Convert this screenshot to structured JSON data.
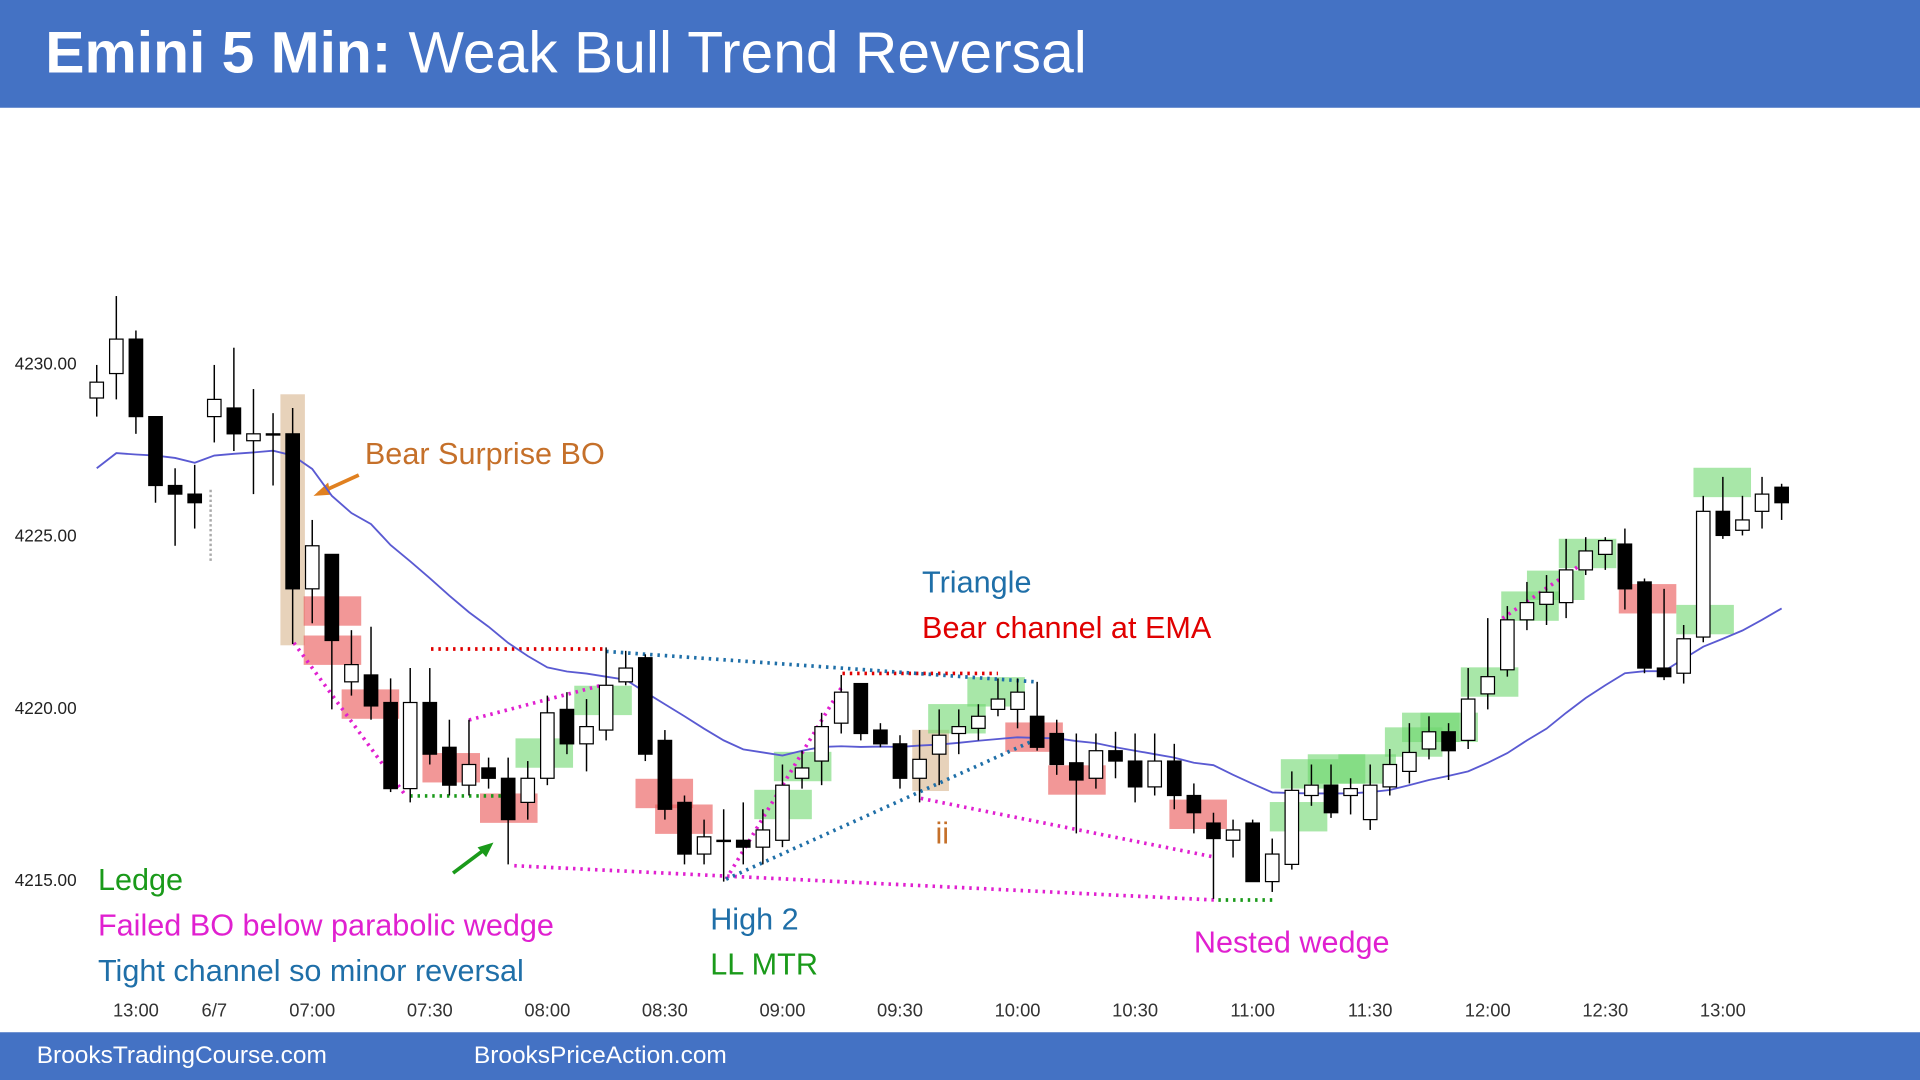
{
  "chart_data": {
    "type": "candlestick",
    "title": "Emini 5 Min:",
    "subtitle": "Weak Bull Trend Reversal",
    "categories": [
      null,
      null,
      "13:00",
      null,
      null,
      null,
      "6/7",
      null,
      null,
      null,
      null,
      "07:00",
      null,
      null,
      null,
      null,
      null,
      "07:30",
      null,
      null,
      null,
      null,
      null,
      "08:00",
      null,
      null,
      null,
      null,
      null,
      "08:30",
      null,
      null,
      null,
      null,
      null,
      "09:00",
      null,
      null,
      null,
      null,
      null,
      "09:30",
      null,
      null,
      null,
      null,
      null,
      "10:00",
      null,
      null,
      null,
      null,
      null,
      "10:30",
      null,
      null,
      null,
      null,
      null,
      "11:00",
      null,
      null,
      null,
      null,
      null,
      "11:30",
      null,
      null,
      null,
      null,
      null,
      "12:00",
      null,
      null,
      null,
      null,
      null,
      "12:30",
      null,
      null,
      null,
      null,
      null,
      "13:00",
      null,
      null,
      null
    ],
    "open": [
      4229.04,
      4229.75,
      4230.75,
      4228.5,
      4226.5,
      4226.25,
      4228.5,
      4228.75,
      4227.8,
      4228,
      4228,
      4223.5,
      4224.5,
      4220.8,
      4221,
      4220.2,
      4217.7,
      4220.2,
      4218.9,
      4217.8,
      4218.3,
      4218,
      4217.3,
      4218,
      4220,
      4219,
      4219.4,
      4220.8,
      4221.5,
      4219.1,
      4217.3,
      4215.8,
      4216.2,
      4216.2,
      4216,
      4216.2,
      4218,
      4218.5,
      4219.6,
      4220.75,
      4219.4,
      4219,
      4218,
      4218.7,
      4219.3,
      4219.45,
      4220,
      4220,
      4219.8,
      4219.3,
      4218.45,
      4218,
      4218.8,
      4218.5,
      4217.75,
      4218.5,
      4217.5,
      4216.7,
      4216.2,
      4216.7,
      4215,
      4215.5,
      4217.5,
      4217.8,
      4217.5,
      4216.8,
      4217.75,
      4218.2,
      4218.85,
      4219.35,
      4219.1,
      4220.45,
      4221.15,
      4222.6,
      4223.05,
      4223.1,
      4224.05,
      4224.5,
      4224.8,
      4223.7,
      4221.2,
      4221.05,
      4222.1,
      4225.75,
      4225.2,
      4225.75,
      4226.45
    ],
    "high": [
      4230,
      4232,
      4231,
      4228.5,
      4227,
      4227.1,
      4230,
      4230.5,
      4229.3,
      4228.6,
      4228.75,
      4225.5,
      4224.5,
      4222.3,
      4222.4,
      4220.9,
      4221.2,
      4221.2,
      4219.7,
      4219.7,
      4218.6,
      4218.6,
      4218.5,
      4220.4,
      4220.5,
      4220.3,
      4221.8,
      4221.7,
      4221.6,
      4219.4,
      4217.5,
      4216.8,
      4217.1,
      4217.3,
      4217.1,
      4218.4,
      4218.8,
      4219.9,
      4221,
      4220.75,
      4219.6,
      4219.25,
      4219.4,
      4220,
      4220,
      4220.15,
      4220.9,
      4220.9,
      4220.8,
      4219.7,
      4219.3,
      4219.3,
      4219.35,
      4219.3,
      4219.3,
      4219,
      4217.85,
      4217,
      4216.8,
      4216.8,
      4216.25,
      4218.2,
      4218.4,
      4218.4,
      4218,
      4218.4,
      4218.85,
      4219.6,
      4219.8,
      4219.6,
      4221.2,
      4222.65,
      4223,
      4223.7,
      4223.9,
      4224.95,
      4225,
      4225,
      4225.25,
      4223.8,
      4223.5,
      4222.45,
      4226.2,
      4226.75,
      4226.2,
      4226.75,
      4226.55
    ],
    "low": [
      4228.5,
      4229,
      4228,
      4226,
      4224.75,
      4225.25,
      4227.75,
      4227.5,
      4226.25,
      4226.5,
      4221.9,
      4222.5,
      4220,
      4220.4,
      4219.7,
      4217.6,
      4217.3,
      4218.4,
      4217.5,
      4217.5,
      4217.7,
      4215.5,
      4216.8,
      4217.8,
      4218.7,
      4218.2,
      4219.1,
      4220.7,
      4218.5,
      4216.8,
      4215.5,
      4215.5,
      4215,
      4215.5,
      4215.5,
      4216,
      4217.7,
      4217.8,
      4219.3,
      4219.1,
      4218.9,
      4217.7,
      4217.3,
      4217.8,
      4218.7,
      4219.1,
      4219.8,
      4219.45,
      4218.8,
      4218.1,
      4216.4,
      4217.7,
      4218,
      4217.3,
      4217.5,
      4217.1,
      4216.4,
      4214.5,
      4215.7,
      4215,
      4214.7,
      4215.35,
      4217.2,
      4216.85,
      4216.95,
      4216.5,
      4217.5,
      4217.85,
      4218.55,
      4217.95,
      4218.85,
      4220,
      4220.95,
      4222.3,
      4222.45,
      4222.65,
      4223.9,
      4224.05,
      4222.9,
      4221.05,
      4220.85,
      4220.75,
      4221.95,
      4224.95,
      4225.05,
      4225.25,
      4225.5
    ],
    "close": [
      4229.5,
      4230.75,
      4228.5,
      4226.5,
      4226.25,
      4226,
      4229,
      4228,
      4228,
      4228,
      4223.5,
      4224.75,
      4222,
      4221.3,
      4220.1,
      4217.7,
      4220.2,
      4218.7,
      4217.8,
      4218.4,
      4218,
      4216.8,
      4218,
      4219.9,
      4219,
      4219.5,
      4220.7,
      4221.2,
      4218.7,
      4217.1,
      4215.8,
      4216.3,
      4216.2,
      4216,
      4216.5,
      4217.8,
      4218.3,
      4219.5,
      4220.5,
      4219.3,
      4219,
      4218,
      4218.55,
      4219.25,
      4219.5,
      4219.8,
      4220.3,
      4220.5,
      4218.9,
      4218.4,
      4217.95,
      4218.8,
      4218.5,
      4217.75,
      4218.5,
      4217.5,
      4217,
      4216.25,
      4216.5,
      4215,
      4215.8,
      4217.65,
      4217.8,
      4217,
      4217.7,
      4217.8,
      4218.4,
      4218.75,
      4219.35,
      4218.8,
      4220.3,
      4220.95,
      4222.6,
      4223.1,
      4223.4,
      4224.05,
      4224.6,
      4224.9,
      4223.5,
      4221.2,
      4220.95,
      4222.05,
      4225.75,
      4225.05,
      4225.5,
      4226.25,
      4226
    ],
    "ema": {
      "color": "#5a5ad2",
      "values": [
        4227.0,
        4227.44,
        4227.4,
        4227.37,
        4227.3,
        4227.16,
        4227.37,
        4227.42,
        4227.46,
        4227.51,
        4227.37,
        4226.98,
        4226.2,
        4225.7,
        4225.38,
        4224.77,
        4224.3,
        4223.81,
        4223.3,
        4222.82,
        4222.4,
        4221.93,
        4221.55,
        4221.22,
        4221.1,
        4221.04,
        4220.95,
        4220.86,
        4220.5,
        4220.15,
        4219.8,
        4219.44,
        4219.1,
        4218.84,
        4218.75,
        4218.66,
        4218.8,
        4218.91,
        4218.93,
        4218.91,
        4218.92,
        4218.91,
        4218.95,
        4218.98,
        4219.03,
        4219.09,
        4219.14,
        4219.19,
        4219.17,
        4219.16,
        4219.08,
        4219.02,
        4218.9,
        4218.8,
        4218.7,
        4218.6,
        4218.45,
        4218.38,
        4218.1,
        4217.84,
        4217.59,
        4217.57,
        4217.56,
        4217.56,
        4217.56,
        4217.6,
        4217.66,
        4217.8,
        4217.95,
        4218.07,
        4218.2,
        4218.45,
        4218.73,
        4219.1,
        4219.44,
        4219.9,
        4220.33,
        4220.7,
        4221.05,
        4221.11,
        4221.11,
        4221.47,
        4221.82,
        4222.05,
        4222.29,
        4222.6,
        4222.93
      ]
    },
    "bull_color": "#ffffff",
    "bear_color": "#000000",
    "ylim": [
      4211.8,
      4237.04
    ],
    "yticks": [
      {
        "value": 4215,
        "label": "4215.00"
      },
      {
        "value": 4220,
        "label": "4220.00"
      },
      {
        "value": 4225,
        "label": "4225.00"
      },
      {
        "value": 4230,
        "label": "4230.00"
      }
    ],
    "annotations": [
      {
        "text": "Bear Surprise BO",
        "color": "#c5702a"
      },
      {
        "text": "Triangle",
        "color": "#1f6fa8"
      },
      {
        "text": "Bear channel at EMA",
        "color": "#e00000"
      },
      {
        "text": "ii",
        "color": "#c5702a"
      },
      {
        "text": "Ledge",
        "color": "#1a9a1a"
      },
      {
        "text": "Failed BO below parabolic wedge",
        "color": "#e020d0"
      },
      {
        "text": "Tight channel so minor reversal",
        "color": "#1f6fa8"
      },
      {
        "text": "High 2",
        "color": "#1f6fa8"
      },
      {
        "text": "LL MTR",
        "color": "#1a9a1a"
      },
      {
        "text": "Nested wedge",
        "color": "#e020d0"
      }
    ]
  },
  "footer": [
    "BrooksTradingCourse.com",
    "BrooksPriceAction.com"
  ]
}
